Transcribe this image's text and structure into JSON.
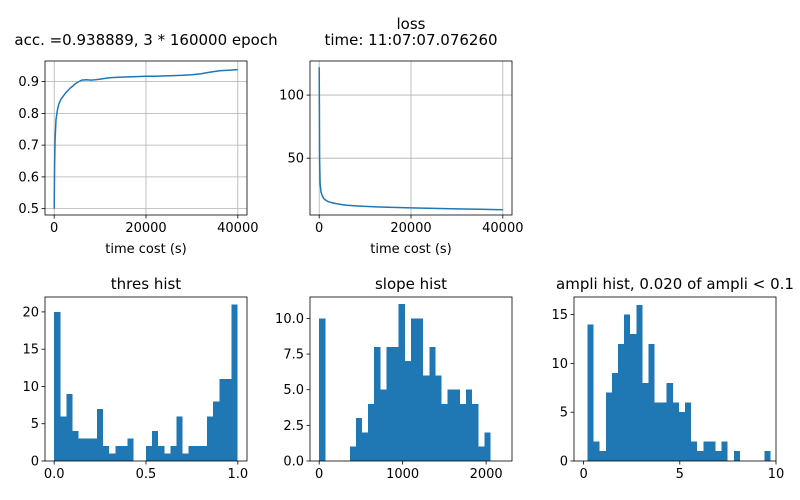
{
  "figure": {
    "background": "#ffffff",
    "accent": "#1f77b4"
  },
  "chart_data": [
    {
      "id": "acc",
      "type": "line",
      "title": "acc. =0.938889, 3 * 160000 epoch",
      "xlabel": "time cost (s)",
      "ylabel": "",
      "xlim": [
        -2000,
        42000
      ],
      "ylim": [
        0.48,
        0.965
      ],
      "xticks": [
        0,
        20000,
        40000
      ],
      "xtick_labels": [
        "0",
        "20000",
        "40000"
      ],
      "yticks": [
        0.5,
        0.6,
        0.7,
        0.8,
        0.9
      ],
      "ytick_labels": [
        "0.5",
        "0.6",
        "0.7",
        "0.8",
        "0.9"
      ],
      "grid": true,
      "color": "#1f77b4",
      "series": [
        {
          "x": [
            0,
            100,
            200,
            400,
            700,
            1000,
            1500,
            2000,
            2500,
            3000,
            3500,
            4000,
            4500,
            5000,
            6000,
            7000,
            8000,
            9000,
            10000,
            12000,
            14000,
            16000,
            18000,
            20000,
            22000,
            24000,
            26000,
            28000,
            30000,
            32000,
            34000,
            36000,
            38000,
            40000
          ],
          "y": [
            0.5,
            0.64,
            0.72,
            0.78,
            0.81,
            0.83,
            0.845,
            0.855,
            0.865,
            0.872,
            0.88,
            0.885,
            0.892,
            0.897,
            0.905,
            0.906,
            0.905,
            0.906,
            0.908,
            0.912,
            0.914,
            0.915,
            0.916,
            0.917,
            0.917,
            0.918,
            0.919,
            0.92,
            0.922,
            0.925,
            0.93,
            0.934,
            0.936,
            0.938
          ]
        }
      ]
    },
    {
      "id": "loss",
      "type": "line",
      "title": "loss",
      "subtitle": "time: 11:07:07.076260",
      "xlabel": "time cost (s)",
      "ylabel": "",
      "xlim": [
        -2000,
        42000
      ],
      "ylim": [
        5,
        127
      ],
      "xticks": [
        0,
        20000,
        40000
      ],
      "xtick_labels": [
        "0",
        "20000",
        "40000"
      ],
      "yticks": [
        50,
        100
      ],
      "ytick_labels": [
        "50",
        "100"
      ],
      "grid": true,
      "color": "#1f77b4",
      "series": [
        {
          "x": [
            0,
            50,
            100,
            200,
            400,
            700,
            1000,
            1500,
            2000,
            3000,
            4000,
            5000,
            6000,
            8000,
            10000,
            12000,
            15000,
            20000,
            25000,
            30000,
            35000,
            40000
          ],
          "y": [
            122,
            90,
            50,
            30,
            23,
            20,
            18,
            16.5,
            15.5,
            14.5,
            13.8,
            13.2,
            12.8,
            12.2,
            11.8,
            11.5,
            11.1,
            10.6,
            10.2,
            9.8,
            9.5,
            9.2
          ]
        }
      ]
    },
    {
      "id": "thres",
      "type": "bar",
      "title": "thres hist",
      "xlabel": "",
      "ylabel": "",
      "xlim": [
        -0.05,
        1.05
      ],
      "ylim": [
        0,
        22
      ],
      "xticks": [
        0,
        0.5,
        1
      ],
      "xtick_labels": [
        "0.0",
        "0.5",
        "1.0"
      ],
      "yticks": [
        0,
        5,
        10,
        15,
        20
      ],
      "ytick_labels": [
        "0",
        "5",
        "10",
        "15",
        "20"
      ],
      "grid": false,
      "color": "#1f77b4",
      "bin_start": 0,
      "bin_width": 0.0333,
      "values": [
        20,
        6,
        9,
        4,
        3,
        3,
        3,
        7,
        2,
        1,
        2,
        2,
        3,
        0,
        0,
        2,
        4,
        2,
        1,
        2,
        6,
        1,
        2,
        2,
        2,
        6,
        8,
        11,
        11,
        21
      ]
    },
    {
      "id": "slope",
      "type": "bar",
      "title": "slope hist",
      "xlabel": "",
      "ylabel": "",
      "xlim": [
        -110,
        2310
      ],
      "ylim": [
        0,
        11.5
      ],
      "xticks": [
        0,
        1000,
        2000
      ],
      "xtick_labels": [
        "0",
        "1000",
        "2000"
      ],
      "yticks": [
        0,
        2.5,
        5,
        7.5,
        10
      ],
      "ytick_labels": [
        "0.0",
        "2.5",
        "5.0",
        "7.5",
        "10.0"
      ],
      "grid": false,
      "color": "#1f77b4",
      "bin_start": 0,
      "bin_width": 73.3,
      "values": [
        10,
        0,
        0,
        0,
        0,
        1,
        3,
        2,
        4,
        8,
        5,
        8,
        8,
        11,
        7,
        10,
        10,
        6,
        8,
        6,
        4,
        5,
        5,
        4,
        5,
        4,
        1,
        2,
        0,
        0
      ]
    },
    {
      "id": "ampli",
      "type": "bar",
      "title": "ampli hist, 0.020 of ampli < 0.1",
      "xlabel": "",
      "ylabel": "",
      "xlim": [
        -0.5,
        10
      ],
      "ylim": [
        0,
        16.8
      ],
      "xticks": [
        0,
        5,
        10
      ],
      "xtick_labels": [
        "0",
        "5",
        "10"
      ],
      "yticks": [
        0,
        5,
        10,
        15
      ],
      "ytick_labels": [
        "0",
        "5",
        "10",
        "15"
      ],
      "grid": false,
      "color": "#1f77b4",
      "bin_start": 0.2,
      "bin_width": 0.317,
      "values": [
        14,
        2,
        1,
        7,
        9,
        12,
        15,
        13,
        16,
        8,
        12,
        6,
        6,
        8,
        6,
        5,
        6,
        2,
        1,
        2,
        2,
        1,
        2,
        0,
        1,
        0,
        0,
        0,
        0,
        1
      ]
    }
  ]
}
